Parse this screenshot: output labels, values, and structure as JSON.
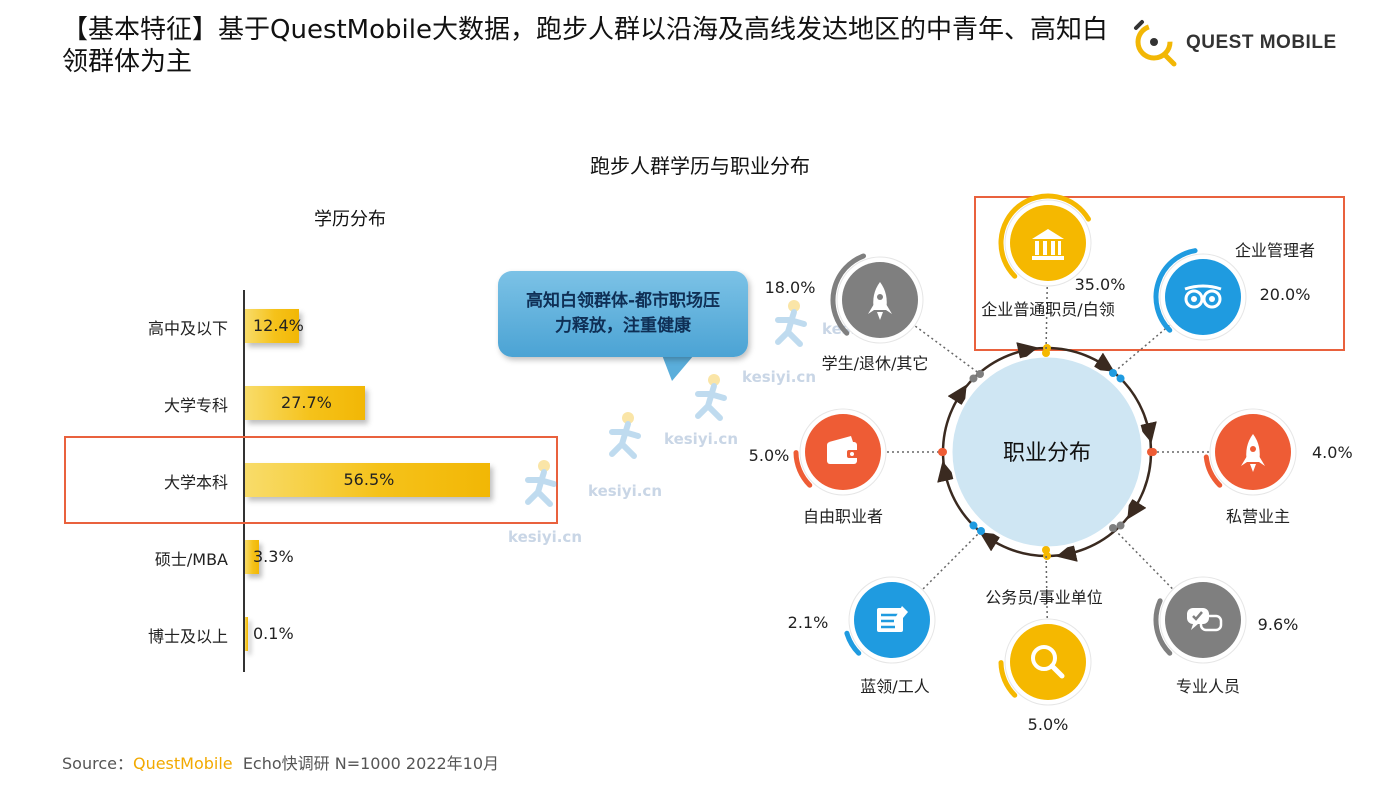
{
  "header": {
    "title": "【基本特征】基于QuestMobile大数据，跑步人群以沿海及高线发达地区的中青年、高知白领群体为主",
    "logo_text": "QUEST MOBILE"
  },
  "main_title": "跑步人群学历与职业分布",
  "callout": "高知白领群体-都市职场压力释放，注重健康",
  "watermark": "kesiyi.cn",
  "chart_data": [
    {
      "type": "bar",
      "orientation": "horizontal",
      "title": "学历分布",
      "categories": [
        "高中及以下",
        "大学专科",
        "大学本科",
        "硕士/MBA",
        "博士及以上"
      ],
      "values": [
        12.4,
        27.7,
        56.5,
        3.3,
        0.1
      ],
      "labels": [
        "12.4%",
        "27.7%",
        "56.5%",
        "3.3%",
        "0.1%"
      ],
      "highlight": "大学本科",
      "unit": "%"
    },
    {
      "type": "radial",
      "title": "职业分布",
      "items": [
        {
          "name": "企业普通职员/白领",
          "value": 35.0,
          "label": "35.0%",
          "color": "#f5b800",
          "icon": "bank-icon",
          "highlight": true
        },
        {
          "name": "企业管理者",
          "value": 20.0,
          "label": "20.0%",
          "color": "#1f9be0",
          "icon": "owl-icon",
          "highlight": true
        },
        {
          "name": "私营业主",
          "value": 4.0,
          "label": "4.0%",
          "color": "#ee5c35",
          "icon": "rocket-icon"
        },
        {
          "name": "专业人员",
          "value": 9.6,
          "label": "9.6%",
          "color": "#7f7f7f",
          "icon": "chat-icon"
        },
        {
          "name": "公务员/事业单位",
          "value": 5.0,
          "label": "5.0%",
          "color": "#f5b800",
          "icon": "search-icon"
        },
        {
          "name": "蓝领/工人",
          "value": 2.1,
          "label": "2.1%",
          "color": "#1f9be0",
          "icon": "list-icon"
        },
        {
          "name": "自由职业者",
          "value": 5.0,
          "label": "5.0%",
          "color": "#ee5c35",
          "icon": "wallet-icon"
        },
        {
          "name": "学生/退休/其它",
          "value": 18.0,
          "label": "18.0%",
          "color": "#7f7f7f",
          "icon": "rocket-icon"
        }
      ]
    }
  ],
  "source": {
    "prefix": "Source：",
    "brand": "QuestMobile",
    "rest": "Echo快调研 N=1000 2022年10月"
  }
}
